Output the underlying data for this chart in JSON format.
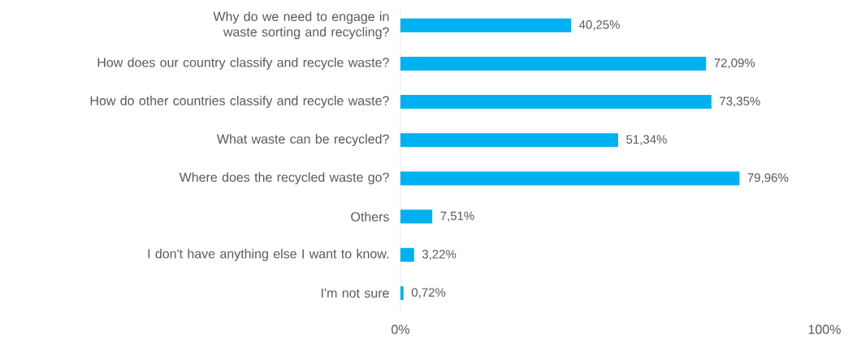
{
  "chart_data": {
    "type": "bar",
    "orientation": "horizontal",
    "categories": [
      "Why do we need to engage in waste sorting and recycling?",
      "How does our country classify and recycle waste?",
      "How do other countries classify and recycle waste?",
      "What waste can be recycled?",
      "Where does the recycled waste go?",
      "Others",
      "I don't have anything else I want to know.",
      "I'm not sure"
    ],
    "values": [
      40.25,
      72.09,
      73.35,
      51.34,
      79.96,
      7.51,
      3.22,
      0.72
    ],
    "value_labels": [
      "40,25%",
      "72,09%",
      "73,35%",
      "51,34%",
      "79,96%",
      "7,51%",
      "3,22%",
      "0,72%"
    ],
    "color": "#00b0f0",
    "xlim": [
      0,
      100
    ],
    "xticks": [
      {
        "value": 0,
        "label": "0%"
      },
      {
        "value": 100,
        "label": "100%"
      }
    ]
  }
}
